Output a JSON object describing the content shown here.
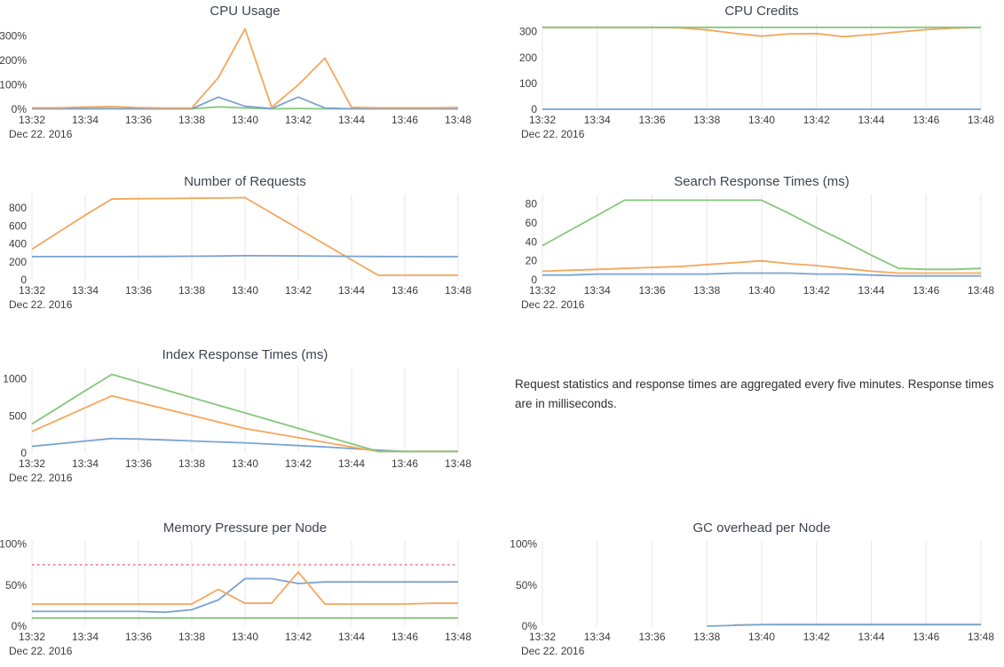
{
  "page": {
    "background": "#ffffff"
  },
  "colors": {
    "blue": "#7aa3d1",
    "orange": "#f5a65b",
    "green": "#86c77d",
    "threshold_red": "#ee8e8e",
    "grid": "#e7e7e7",
    "axis_text": "#3c3c3c",
    "title_text": "#3f4350"
  },
  "note": {
    "text": "Request statistics and response times are aggregated every five minutes. Response times are in milliseconds."
  },
  "chart_data": {
    "time_axis": {
      "x_minutes": [
        32,
        33,
        34,
        35,
        36,
        37,
        38,
        39,
        40,
        41,
        42,
        43,
        44,
        45,
        46,
        47,
        48
      ],
      "tick_minutes": [
        32,
        34,
        36,
        38,
        40,
        42,
        44,
        46,
        48
      ],
      "tick_labels": [
        "13:32",
        "13:34",
        "13:36",
        "13:38",
        "13:40",
        "13:42",
        "13:44",
        "13:46",
        "13:48"
      ],
      "date_label": "Dec 22. 2016"
    },
    "charts": [
      {
        "type": "line",
        "title": "CPU Usage",
        "xlabel": "",
        "ylabel": "",
        "ylim": [
          0,
          350
        ],
        "grid": false,
        "legend": false,
        "y_ticks": [
          {
            "v": 0,
            "l": "0%"
          },
          {
            "v": 100,
            "l": "100%"
          },
          {
            "v": 200,
            "l": "200%"
          },
          {
            "v": 300,
            "l": "300%"
          }
        ],
        "series": [
          {
            "name": "green",
            "color_key": "green",
            "values": [
              2,
              2,
              3,
              3,
              2,
              2,
              2,
              10,
              5,
              2,
              3,
              2,
              2,
              2,
              2,
              2,
              2
            ]
          },
          {
            "name": "blue",
            "color_key": "blue",
            "values": [
              2,
              2,
              2,
              2,
              2,
              2,
              2,
              50,
              12,
              3,
              50,
              5,
              2,
              2,
              2,
              2,
              2
            ]
          },
          {
            "name": "orange",
            "color_key": "orange",
            "values": [
              6,
              6,
              9,
              11,
              7,
              5,
              5,
              130,
              330,
              8,
              100,
              210,
              8,
              6,
              6,
              6,
              7
            ]
          }
        ]
      },
      {
        "type": "line",
        "title": "CPU Credits",
        "xlabel": "",
        "ylabel": "",
        "ylim": [
          0,
          330
        ],
        "grid": true,
        "legend": false,
        "y_ticks": [
          {
            "v": 0,
            "l": "0"
          },
          {
            "v": 100,
            "l": "100"
          },
          {
            "v": 200,
            "l": "200"
          },
          {
            "v": 300,
            "l": "300"
          }
        ],
        "series": [
          {
            "name": "blue",
            "color_key": "blue",
            "values": [
              0,
              0,
              0,
              0,
              0,
              0,
              0,
              0,
              0,
              0,
              0,
              0,
              0,
              0,
              0,
              0,
              0
            ]
          },
          {
            "name": "orange",
            "color_key": "orange",
            "values": [
              317,
              317,
              317,
              317,
              317,
              315,
              307,
              294,
              283,
              292,
              293,
              281,
              289,
              299,
              308,
              314,
              317
            ]
          },
          {
            "name": "green",
            "color_key": "green",
            "values": [
              317,
              317,
              317,
              317,
              317,
              317,
              317,
              317,
              317,
              317,
              317,
              317,
              317,
              317,
              317,
              317,
              317
            ]
          }
        ]
      },
      {
        "type": "line",
        "title": "Number of Requests",
        "xlabel": "",
        "ylabel": "",
        "ylim": [
          0,
          950
        ],
        "grid": true,
        "legend": false,
        "y_ticks": [
          {
            "v": 0,
            "l": "0"
          },
          {
            "v": 200,
            "l": "200"
          },
          {
            "v": 400,
            "l": "400"
          },
          {
            "v": 600,
            "l": "600"
          },
          {
            "v": 800,
            "l": "800"
          }
        ],
        "series": [
          {
            "name": "orange",
            "color_key": "orange",
            "values": [
              340,
              530,
              720,
              900,
              903,
              905,
              908,
              910,
              915,
              742,
              569,
              396,
              223,
              50,
              50,
              50,
              50
            ]
          },
          {
            "name": "blue",
            "color_key": "blue",
            "values": [
              258,
              258,
              258,
              258,
              259,
              260,
              262,
              264,
              268,
              267,
              265,
              263,
              261,
              259,
              258,
              257,
              257
            ]
          }
        ]
      },
      {
        "type": "line",
        "title": "Search Response Times (ms)",
        "xlabel": "",
        "ylabel": "",
        "ylim": [
          0,
          90
        ],
        "grid": true,
        "legend": false,
        "y_ticks": [
          {
            "v": 0,
            "l": "0"
          },
          {
            "v": 20,
            "l": "20"
          },
          {
            "v": 40,
            "l": "40"
          },
          {
            "v": 60,
            "l": "60"
          },
          {
            "v": 80,
            "l": "80"
          }
        ],
        "series": [
          {
            "name": "blue",
            "color_key": "blue",
            "values": [
              5,
              5,
              6,
              6,
              6,
              6,
              6,
              7,
              7,
              7,
              6,
              6,
              5,
              4,
              4,
              4,
              4
            ]
          },
          {
            "name": "orange",
            "color_key": "orange",
            "values": [
              9,
              10,
              11,
              12,
              13,
              14,
              16,
              18,
              20,
              17,
              15,
              12,
              9,
              7,
              7,
              7,
              7
            ]
          },
          {
            "name": "green",
            "color_key": "green",
            "values": [
              36,
              52,
              68,
              84,
              84,
              84,
              84,
              84,
              84,
              70,
              55,
              41,
              26,
              12,
              11,
              11,
              12
            ]
          }
        ]
      },
      {
        "type": "line",
        "title": "Index Response Times (ms)",
        "xlabel": "",
        "ylabel": "",
        "ylim": [
          0,
          1150
        ],
        "grid": true,
        "legend": false,
        "y_ticks": [
          {
            "v": 0,
            "l": "0"
          },
          {
            "v": 500,
            "l": "500"
          },
          {
            "v": 1000,
            "l": "1000"
          }
        ],
        "series": [
          {
            "name": "blue",
            "color_key": "blue",
            "values": [
              90,
              125,
              160,
              195,
              188,
              176,
              162,
              149,
              136,
              118,
              100,
              82,
              60,
              38,
              20,
              20,
              20
            ]
          },
          {
            "name": "orange",
            "color_key": "orange",
            "values": [
              290,
              450,
              610,
              770,
              682,
              594,
              506,
              418,
              330,
              268,
              206,
              144,
              82,
              20,
              20,
              20,
              20
            ]
          },
          {
            "name": "green",
            "color_key": "green",
            "values": [
              390,
              615,
              840,
              1060,
              956,
              852,
              748,
              644,
              540,
              436,
              332,
              228,
              124,
              20,
              20,
              20,
              20
            ]
          }
        ]
      },
      {
        "type": "line",
        "title": "Memory Pressure per Node",
        "xlabel": "",
        "ylabel": "",
        "ylim": [
          0,
          104
        ],
        "grid": true,
        "legend": false,
        "y_ticks": [
          {
            "v": 0,
            "l": "0%"
          },
          {
            "v": 50,
            "l": "50%"
          },
          {
            "v": 100,
            "l": "100%"
          }
        ],
        "series": [
          {
            "name": "threshold",
            "color_key": "threshold_red",
            "dash": true,
            "values": [
              75,
              75,
              75,
              75,
              75,
              75,
              75,
              75,
              75,
              75,
              75,
              75,
              75,
              75,
              75,
              75,
              75
            ]
          },
          {
            "name": "green",
            "color_key": "green",
            "values": [
              10,
              10,
              10,
              10,
              10,
              10,
              10,
              10,
              10,
              10,
              10,
              10,
              10,
              10,
              10,
              10,
              10
            ]
          },
          {
            "name": "blue",
            "color_key": "blue",
            "values": [
              18,
              18,
              18,
              18,
              18,
              17,
              20,
              32,
              58,
              58,
              52,
              54,
              54,
              54,
              54,
              54,
              54
            ]
          },
          {
            "name": "orange",
            "color_key": "orange",
            "values": [
              27,
              27,
              27,
              27,
              27,
              27,
              27,
              45,
              28,
              28,
              66,
              27,
              27,
              27,
              27,
              28,
              28
            ]
          }
        ]
      },
      {
        "type": "line",
        "title": "GC overhead per Node",
        "xlabel": "",
        "ylabel": "",
        "ylim": [
          0,
          104
        ],
        "grid": true,
        "legend": false,
        "y_ticks": [
          {
            "v": 0,
            "l": "0%"
          },
          {
            "v": 50,
            "l": "50%"
          },
          {
            "v": 100,
            "l": "100%"
          }
        ],
        "series": [
          {
            "name": "orange",
            "color_key": "orange",
            "values": [
              null,
              null,
              null,
              null,
              null,
              null,
              null,
              1.5,
              1.7,
              1.8,
              1.8,
              1.8,
              1.8,
              1.8,
              1.8,
              1.8,
              1.8
            ]
          },
          {
            "name": "blue",
            "color_key": "blue",
            "values": [
              null,
              null,
              null,
              null,
              null,
              null,
              0,
              1,
              2,
              2,
              2,
              2,
              2,
              2,
              2,
              2,
              2
            ]
          }
        ]
      }
    ]
  }
}
